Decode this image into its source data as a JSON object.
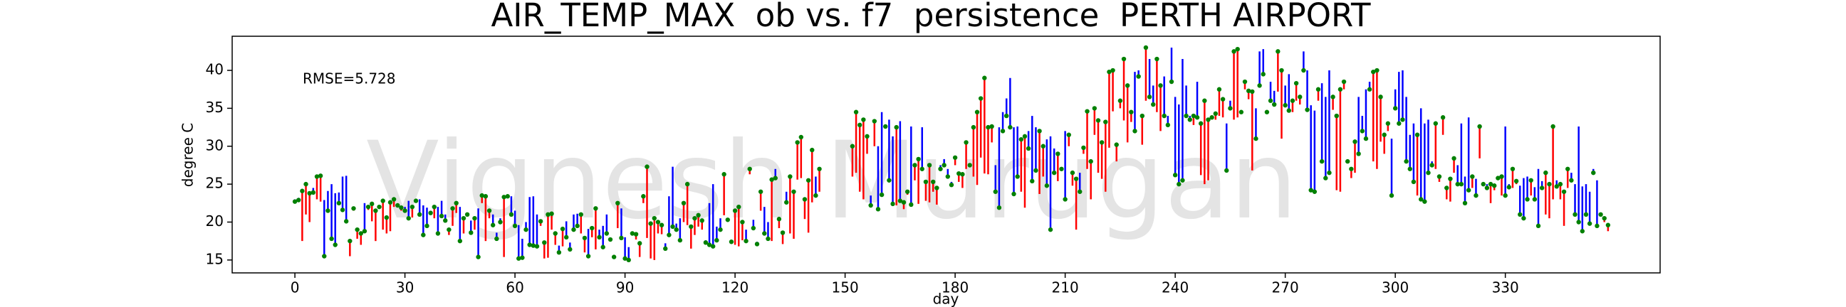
{
  "chart_data": {
    "type": "stem",
    "title": "AIR_TEMP_MAX  ob vs. f7  persistence  PERTH AIRPORT",
    "annotation": "RMSE=5.728",
    "watermark": "Vignesh Murugan",
    "xlabel": "day",
    "ylabel": "degree C",
    "x": [
      0,
      1,
      2,
      3,
      4,
      5,
      6,
      7,
      8,
      9,
      10,
      11,
      12,
      13,
      14,
      15,
      16,
      17,
      18,
      19,
      20,
      21,
      22,
      23,
      24,
      25,
      26,
      27,
      28,
      29,
      30,
      31,
      32,
      33,
      34,
      35,
      36,
      37,
      38,
      39,
      40,
      41,
      42,
      43,
      44,
      45,
      46,
      47,
      48,
      49,
      50,
      51,
      52,
      53,
      54,
      55,
      56,
      57,
      58,
      59,
      60,
      61,
      62,
      63,
      64,
      65,
      66,
      67,
      68,
      69,
      70,
      71,
      72,
      73,
      74,
      75,
      76,
      77,
      78,
      79,
      80,
      81,
      82,
      83,
      84,
      85,
      86,
      87,
      88,
      89,
      90,
      91,
      92,
      93,
      94,
      95,
      96,
      97,
      98,
      99,
      100,
      101,
      102,
      103,
      104,
      105,
      106,
      107,
      108,
      109,
      110,
      111,
      112,
      113,
      114,
      115,
      116,
      117,
      118,
      119,
      120,
      121,
      122,
      123,
      124,
      125,
      126,
      127,
      128,
      129,
      130,
      131,
      132,
      133,
      134,
      135,
      136,
      137,
      138,
      139,
      140,
      141,
      142,
      143,
      144,
      145,
      146,
      147,
      148,
      149,
      150,
      151,
      152,
      153,
      154,
      155,
      156,
      157,
      158,
      159,
      160,
      161,
      162,
      163,
      164,
      165,
      166,
      167,
      168,
      169,
      170,
      171,
      172,
      173,
      174,
      175,
      176,
      177,
      178,
      179,
      180,
      181,
      182,
      183,
      184,
      185,
      186,
      187,
      188,
      189,
      190,
      191,
      192,
      193,
      194,
      195,
      196,
      197,
      198,
      199,
      200,
      201,
      202,
      203,
      204,
      205,
      206,
      207,
      208,
      209,
      210,
      211,
      212,
      213,
      214,
      215,
      216,
      217,
      218,
      219,
      220,
      221,
      222,
      223,
      224,
      225,
      226,
      227,
      228,
      229,
      230,
      231,
      232,
      233,
      234,
      235,
      236,
      237,
      238,
      239,
      240,
      241,
      242,
      243,
      244,
      245,
      246,
      247,
      248,
      249,
      250,
      251,
      252,
      253,
      254,
      255,
      256,
      257,
      258,
      259,
      260,
      261,
      262,
      263,
      264,
      265,
      266,
      267,
      268,
      269,
      270,
      271,
      272,
      273,
      274,
      275,
      276,
      277,
      278,
      279,
      280,
      281,
      282,
      283,
      284,
      285,
      286,
      287,
      288,
      289,
      290,
      291,
      292,
      293,
      294,
      295,
      296,
      297,
      298,
      299,
      300,
      301,
      302,
      303,
      304,
      305,
      306,
      307,
      308,
      309,
      310,
      311,
      312,
      313,
      314,
      315,
      316,
      317,
      318,
      319,
      320,
      321,
      322,
      323,
      324,
      325,
      326,
      327,
      328,
      329,
      330,
      331,
      332,
      333,
      334,
      335,
      336,
      337,
      338,
      339,
      340,
      341,
      342,
      343,
      344,
      345,
      346,
      347,
      348,
      349,
      350,
      351,
      352,
      353,
      354,
      355,
      356,
      357,
      358
    ],
    "ob": {
      "color": "green",
      "values": [
        22.7,
        22.9,
        24.1,
        25.0,
        23.8,
        23.9,
        26.0,
        26.1,
        15.5,
        21.5,
        17.8,
        17.0,
        22.5,
        21.6,
        20.1,
        17.5,
        21.8,
        19.0,
        18.5,
        18.8,
        22.0,
        22.4,
        21.5,
        22.0,
        22.8,
        20.6,
        22.6,
        23.0,
        22.2,
        21.9,
        21.5,
        20.5,
        22.0,
        22.8,
        21.0,
        18.3,
        19.5,
        21.2,
        22.0,
        18.5,
        20.8,
        20.2,
        19.0,
        21.8,
        22.5,
        17.5,
        20.5,
        21.0,
        18.6,
        20.5,
        15.4,
        23.5,
        23.4,
        21.5,
        19.6,
        17.8,
        20.0,
        23.3,
        23.4,
        21.0,
        19.5,
        15.2,
        15.3,
        19.0,
        17.0,
        16.9,
        16.8,
        20.1,
        17.3,
        21.0,
        21.1,
        18.5,
        16.0,
        19.1,
        18.0,
        16.4,
        19.0,
        19.5,
        21.0,
        17.9,
        15.5,
        19.2,
        21.8,
        18.0,
        16.7,
        18.5,
        17.7,
        15.4,
        22.5,
        17.9,
        15.2,
        15.0,
        18.5,
        18.4,
        17.2,
        23.4,
        27.3,
        19.8,
        20.5,
        20.0,
        19.6,
        16.5,
        18.3,
        19.4,
        19.0,
        17.6,
        22.5,
        25.0,
        19.4,
        20.5,
        20.9,
        20.2,
        17.3,
        17.0,
        16.8,
        17.6,
        19.0,
        26.3,
        20.3,
        17.4,
        21.5,
        22.0,
        20.0,
        17.5,
        27.0,
        19.2,
        17.1,
        24.0,
        18.5,
        17.8,
        25.6,
        25.8,
        20.4,
        18.6,
        22.6,
        26.0,
        24.0,
        30.5,
        31.2,
        23.0,
        25.5,
        29.5,
        23.5,
        27.0,
        null,
        null,
        null,
        null,
        null,
        null,
        null,
        null,
        30.0,
        34.5,
        32.8,
        33.5,
        31.3,
        22.2,
        33.3,
        21.7,
        23.6,
        32.6,
        25.5,
        22.4,
        32.5,
        22.8,
        22.6,
        24.0,
        22.3,
        27.5,
        28.3,
        27.0,
        25.3,
        27.5,
        25.3,
        24.5,
        27.0,
        27.5,
        26.0,
        24.9,
        28.5,
        26.4,
        26.3,
        30.5,
        27.5,
        32.5,
        34.5,
        36.3,
        39.0,
        32.5,
        32.6,
        24.0,
        21.9,
        32.0,
        34.0,
        32.5,
        23.7,
        26.0,
        30.9,
        31.3,
        29.7,
        25.4,
        26.8,
        32.0,
        30.0,
        24.8,
        19.0,
        26.5,
        29.0,
        27.0,
        23.0,
        31.5,
        26.5,
        25.7,
        24.0,
        29.8,
        34.6,
        28.0,
        35.0,
        33.4,
        30.5,
        33.2,
        39.8,
        40.0,
        30.2,
        36.0,
        41.5,
        38.0,
        34.5,
        32.0,
        39.2,
        34.0,
        43.0,
        36.5,
        35.5,
        41.5,
        38.0,
        34.0,
        32.8,
        38.5,
        26.2,
        25.0,
        25.5,
        34.0,
        33.5,
        34.0,
        33.8,
        33.0,
        36.0,
        33.5,
        33.8,
        34.3,
        37.5,
        36.2,
        26.8,
        35.0,
        42.5,
        42.8,
        34.5,
        38.5,
        37.3,
        37.2,
        31.0,
        38.0,
        39.5,
        34.5,
        36.0,
        35.5,
        42.5,
        40.0,
        35.4,
        34.7,
        36.0,
        38.3,
        36.5,
        40.0,
        34.8,
        24.2,
        24.0,
        37.5,
        28.0,
        25.8,
        26.5,
        36.5,
        34.0,
        37.5,
        38.5,
        28.0,
        27.0,
        30.6,
        29.0,
        32.0,
        31.0,
        37.5,
        39.8,
        40.0,
        36.5,
        31.5,
        33.0,
        23.5,
        35.0,
        33.0,
        33.5,
        28.0,
        27.0,
        25.3,
        31.5,
        23.0,
        22.7,
        26.5,
        27.5,
        33.0,
        26.0,
        33.8,
        24.5,
        25.7,
        28.4,
        25.0,
        25.0,
        22.5,
        24.2,
        26.0,
        23.5,
        32.6,
        25.0,
        24.5,
        25.0,
        24.8,
        25.8,
        26.0,
        23.5,
        24.6,
        27.0,
        25.4,
        21.0,
        20.5,
        23.0,
        25.5,
        23.0,
        19.5,
        24.5,
        26.5,
        25.0,
        32.6,
        24.7,
        25.0,
        24.0,
        27.0,
        25.5,
        21.0,
        20.0,
        18.8,
        21.0,
        19.8,
        26.5,
        19.5,
        21.0,
        20.5,
        19.6
      ]
    },
    "f7": {
      "values": [
        23.0,
        23.2,
        17.5,
        21.0,
        20.0,
        24.5,
        23.0,
        22.7,
        22.9,
        24.1,
        25.0,
        23.8,
        23.9,
        26.0,
        26.1,
        15.5,
        21.5,
        17.8,
        17.0,
        22.5,
        21.6,
        20.1,
        17.5,
        21.8,
        19.0,
        18.5,
        18.8,
        22.0,
        22.4,
        21.5,
        22.0,
        22.8,
        20.6,
        22.6,
        23.0,
        22.2,
        21.9,
        21.5,
        20.5,
        22.0,
        22.8,
        21.0,
        18.3,
        19.5,
        21.2,
        22.0,
        18.5,
        20.8,
        20.2,
        19.0,
        21.8,
        22.5,
        17.5,
        20.5,
        21.0,
        18.6,
        20.5,
        15.4,
        23.5,
        23.4,
        21.5,
        19.6,
        17.8,
        20.0,
        23.3,
        23.4,
        21.0,
        19.5,
        15.2,
        15.3,
        19.0,
        17.0,
        16.9,
        16.8,
        20.1,
        17.3,
        21.0,
        21.1,
        18.5,
        16.0,
        19.1,
        18.0,
        16.4,
        19.0,
        19.5,
        21.0,
        17.9,
        15.5,
        19.2,
        21.8,
        18.0,
        16.7,
        18.5,
        17.7,
        15.4,
        22.5,
        17.9,
        15.2,
        15.0,
        18.5,
        18.4,
        17.2,
        23.4,
        27.3,
        19.8,
        20.5,
        20.0,
        19.6,
        16.5,
        18.3,
        19.4,
        19.0,
        17.6,
        22.5,
        25.0,
        19.4,
        20.5,
        20.9,
        20.2,
        17.3,
        17.0,
        16.8,
        17.6,
        19.0,
        26.3,
        20.3,
        17.4,
        21.5,
        22.0,
        20.0,
        17.5,
        27.0,
        19.2,
        17.1,
        24.0,
        18.5,
        17.8,
        25.6,
        25.8,
        20.4,
        18.6,
        22.6,
        26.0,
        24.0,
        null,
        null,
        null,
        null,
        null,
        null,
        null,
        null,
        26.0,
        26.5,
        24.0,
        23.0,
        29.0,
        23.5,
        30.0,
        30.0,
        34.5,
        32.8,
        33.5,
        31.3,
        22.2,
        33.3,
        21.7,
        23.6,
        32.6,
        25.5,
        22.4,
        32.5,
        22.8,
        22.6,
        24.0,
        22.3,
        27.5,
        28.3,
        27.0,
        25.3,
        27.5,
        25.3,
        24.5,
        27.0,
        27.5,
        26.0,
        24.9,
        28.5,
        26.4,
        26.3,
        30.5,
        27.5,
        32.5,
        34.5,
        36.3,
        39.0,
        32.5,
        32.6,
        24.0,
        21.9,
        32.0,
        34.0,
        32.5,
        23.7,
        26.0,
        30.9,
        31.3,
        29.7,
        25.4,
        26.8,
        32.0,
        30.0,
        24.8,
        19.0,
        26.5,
        29.0,
        27.0,
        23.0,
        31.5,
        26.5,
        25.7,
        24.0,
        29.8,
        34.6,
        28.0,
        35.0,
        33.4,
        30.5,
        33.2,
        39.8,
        40.0,
        30.2,
        36.0,
        41.5,
        38.0,
        34.5,
        32.0,
        39.2,
        34.0,
        43.0,
        36.5,
        35.5,
        41.5,
        38.0,
        34.0,
        32.8,
        38.5,
        26.2,
        25.0,
        25.5,
        34.0,
        33.5,
        34.0,
        33.8,
        33.0,
        36.0,
        33.5,
        33.8,
        34.3,
        37.5,
        36.2,
        26.8,
        35.0,
        42.5,
        42.8,
        34.5,
        38.5,
        37.3,
        37.2,
        31.0,
        38.0,
        39.5,
        34.5,
        36.0,
        35.5,
        42.5,
        40.0,
        35.4,
        34.7,
        36.0,
        38.3,
        36.5,
        40.0,
        34.8,
        24.2,
        24.0,
        37.5,
        28.0,
        25.8,
        26.5,
        36.5,
        34.0,
        37.5,
        38.5,
        28.0,
        27.0,
        30.6,
        29.0,
        32.0,
        31.0,
        37.5,
        39.8,
        40.0,
        36.5,
        31.5,
        33.0,
        23.5,
        35.0,
        33.0,
        33.5,
        28.0,
        27.0,
        25.3,
        31.5,
        23.0,
        22.7,
        26.5,
        27.5,
        33.0,
        26.0,
        33.8,
        24.5,
        25.7,
        28.4,
        25.0,
        25.0,
        22.5,
        24.2,
        26.0,
        23.5,
        32.6,
        25.0,
        24.5,
        25.0,
        24.8,
        25.8,
        26.0,
        23.5,
        24.6,
        27.0,
        25.4,
        21.0,
        20.5,
        23.0,
        25.5,
        23.0,
        19.5,
        24.5,
        26.5,
        25.0,
        32.6,
        24.7,
        25.0,
        24.0,
        27.0,
        25.5,
        21.0,
        20.0,
        18.8
      ]
    },
    "rise_color": "red",
    "fall_color": "blue",
    "xlim": [
      -17.1,
      372.2
    ],
    "ylim": [
      13.3,
      44.5
    ],
    "xticks": [
      0,
      30,
      60,
      90,
      120,
      150,
      180,
      210,
      240,
      270,
      300,
      330
    ],
    "yticks": [
      15,
      20,
      25,
      30,
      35,
      40
    ]
  }
}
